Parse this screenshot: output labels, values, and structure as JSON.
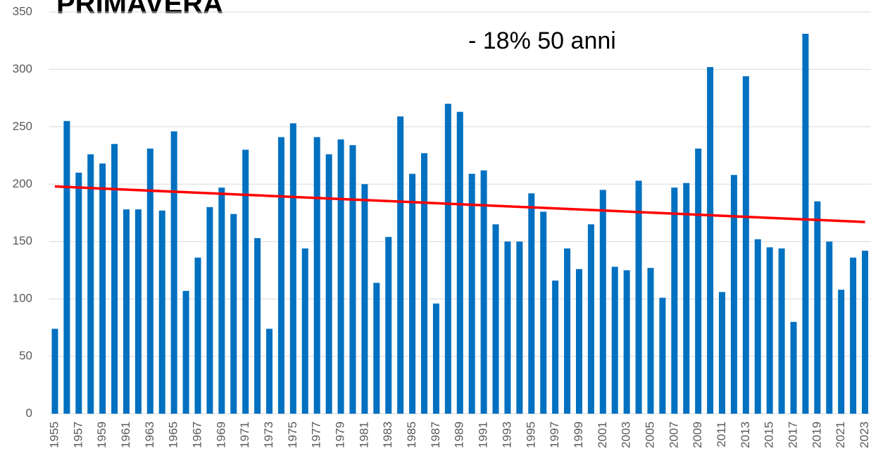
{
  "chart_data": {
    "type": "bar",
    "title": "PRIMAVERA",
    "annotation": "- 18% 50 anni",
    "categories": [
      "1955",
      null,
      "1957",
      null,
      "1959",
      null,
      "1961",
      null,
      "1963",
      null,
      "1965",
      null,
      "1967",
      null,
      "1969",
      null,
      "1971",
      null,
      "1973",
      null,
      "1975",
      null,
      "1977",
      null,
      "1979",
      null,
      "1981",
      null,
      "1983",
      null,
      "1985",
      null,
      "1987",
      null,
      "1989",
      null,
      "1991",
      null,
      "1993",
      null,
      "1995",
      null,
      "1997",
      null,
      "1999",
      null,
      "2001",
      null,
      "2003",
      null,
      "2005",
      null,
      "2007",
      null,
      "2009",
      null,
      "2011",
      null,
      "2013",
      null,
      "2015",
      null,
      "2017",
      null,
      "2019",
      null,
      "2021",
      null,
      "2023"
    ],
    "values": [
      74,
      255,
      210,
      226,
      218,
      235,
      178,
      178,
      231,
      177,
      246,
      107,
      136,
      180,
      197,
      174,
      230,
      153,
      74,
      241,
      253,
      144,
      241,
      226,
      239,
      234,
      200,
      114,
      154,
      259,
      209,
      227,
      96,
      270,
      263,
      209,
      212,
      165,
      150,
      150,
      192,
      176,
      116,
      144,
      126,
      165,
      195,
      128,
      125,
      203,
      127,
      101,
      197,
      201,
      231,
      302,
      106,
      208,
      294,
      152,
      145,
      144,
      80,
      331,
      185,
      150,
      108,
      136,
      142
    ],
    "color": "#0070c0",
    "trendline": {
      "values": [
        198,
        167
      ],
      "color": "#ff0000"
    },
    "ylim": [
      0,
      350
    ],
    "yticks": [
      0,
      50,
      100,
      150,
      200,
      250,
      300,
      350
    ],
    "grid": true
  }
}
